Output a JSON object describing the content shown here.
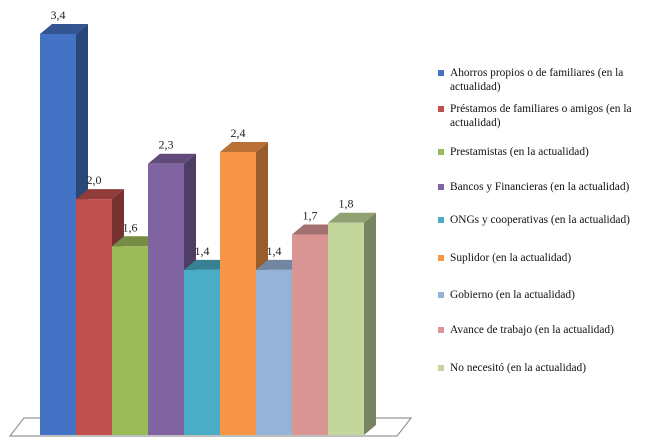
{
  "chart_data": {
    "type": "bar",
    "title": "",
    "xlabel": "",
    "ylabel": "",
    "ylim": [
      0,
      3.4
    ],
    "grid": false,
    "legend_position": "right",
    "series": [
      {
        "name": "Ahorros propios o de familiares (en la actualidad)",
        "value": 3.4,
        "label": "3,4",
        "color": "#4472C4"
      },
      {
        "name": "Préstamos de familiares o amigos (en la actualidad)",
        "value": 2.0,
        "label": "2,0",
        "color": "#C0504D"
      },
      {
        "name": "Prestamistas (en la actualidad)",
        "value": 1.6,
        "label": "1,6",
        "color": "#9BBB59"
      },
      {
        "name": "Bancos y Financieras (en la actualidad)",
        "value": 2.3,
        "label": "2,3",
        "color": "#8064A2"
      },
      {
        "name": "ONGs y cooperativas (en la actualidad)",
        "value": 1.4,
        "label": "1,4",
        "color": "#4BACC6"
      },
      {
        "name": "Suplidor (en la actualidad)",
        "value": 2.4,
        "label": "2,4",
        "color": "#F79646"
      },
      {
        "name": "Gobierno (en la actualidad)",
        "value": 1.4,
        "label": "1,4",
        "color": "#95B3D7"
      },
      {
        "name": "Avance de trabajo (en la actualidad)",
        "value": 1.7,
        "label": "1,7",
        "color": "#D99694"
      },
      {
        "name": "No necesitó (en la actualidad)",
        "value": 1.8,
        "label": "1,8",
        "color": "#C3D69B"
      }
    ]
  }
}
